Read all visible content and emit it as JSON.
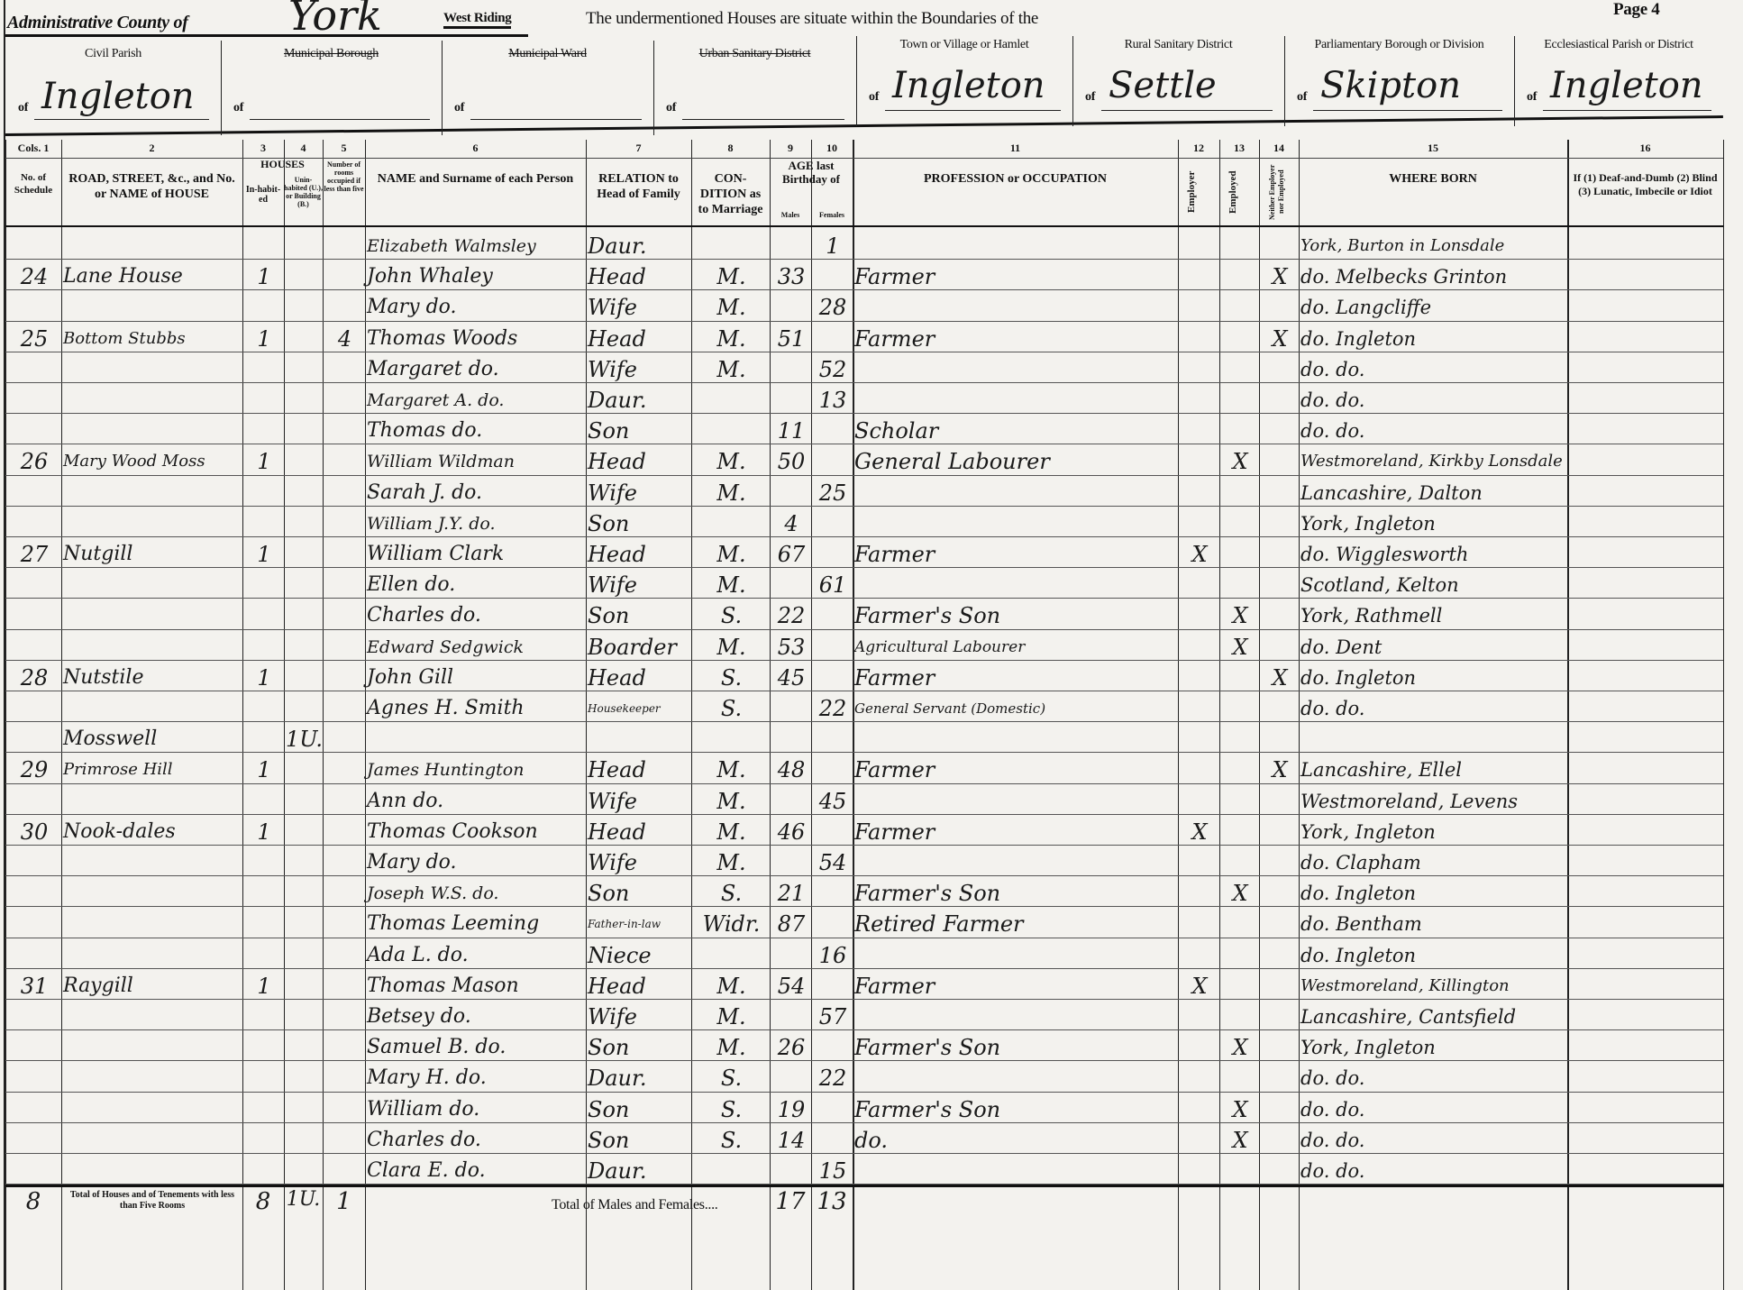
{
  "header": {
    "county_label": "Administrative County of",
    "county": "York",
    "riding": "West Riding",
    "intro": "The undermentioned Houses are situate within the Boundaries of the",
    "page": "Page 4",
    "areas": [
      {
        "label": "Civil Parish",
        "value": "Ingleton",
        "struck": false
      },
      {
        "label": "Municipal Borough",
        "value": "",
        "struck": true
      },
      {
        "label": "Municipal Ward",
        "value": "",
        "struck": true
      },
      {
        "label": "Urban Sanitary District",
        "value": "",
        "struck": true
      },
      {
        "label": "Town or Village or Hamlet",
        "value": "Ingleton",
        "struck": false
      },
      {
        "label": "Rural Sanitary District",
        "value": "Settle",
        "struck": false
      },
      {
        "label": "Parliamentary Borough or Division",
        "value": "Skipton",
        "struck": false
      },
      {
        "label": "Ecclesiastical Parish or District",
        "value": "Ingleton",
        "struck": false
      }
    ],
    "of": "of"
  },
  "columns": {
    "numbers": [
      "Cols. 1",
      "2",
      "3",
      "4",
      "5",
      "6",
      "7",
      "8",
      "9",
      "10",
      "11",
      "12",
      "13",
      "14",
      "15",
      "16"
    ],
    "c1": "No. of Schedule",
    "c2": "ROAD, STREET, &c., and No. or NAME of HOUSE",
    "houses": "HOUSES",
    "c3": "In-habit-ed",
    "c4": "Unin-habited (U.), or Building (B.)",
    "c5": "Number of rooms occupied if less than five",
    "c6": "NAME and Surname of each Person",
    "c7": "RELATION to Head of Family",
    "c8": "CON-DITION as to Marriage",
    "c9_10": "AGE last Birthday of",
    "males": "Males",
    "females": "Females",
    "c11": "PROFESSION or OCCUPATION",
    "c12": "Employer",
    "c13": "Employed",
    "c14": "Neither Employer nor Employed",
    "c15": "WHERE BORN",
    "c16": "If (1) Deaf-and-Dumb (2) Blind (3) Lunatic, Imbecile or Idiot"
  },
  "rows": [
    [
      "",
      "",
      "",
      "",
      "",
      "Elizabeth Walmsley",
      "Daur.",
      "",
      "",
      "1",
      "",
      "",
      "",
      "",
      "York, Burton in Lonsdale"
    ],
    [
      "24",
      "Lane House",
      "1",
      "",
      "",
      "John Whaley",
      "Head",
      "M.",
      "33",
      "",
      "Farmer",
      "",
      "",
      "X",
      "do. Melbecks Grinton"
    ],
    [
      "",
      "",
      "",
      "",
      "",
      "Mary do.",
      "Wife",
      "M.",
      "",
      "28",
      "",
      "",
      "",
      "",
      "do. Langcliffe"
    ],
    [
      "25",
      "Bottom Stubbs",
      "1",
      "",
      "4",
      "Thomas Woods",
      "Head",
      "M.",
      "51",
      "",
      "Farmer",
      "",
      "",
      "X",
      "do. Ingleton"
    ],
    [
      "",
      "",
      "",
      "",
      "",
      "Margaret do.",
      "Wife",
      "M.",
      "",
      "52",
      "",
      "",
      "",
      "",
      "do. do."
    ],
    [
      "",
      "",
      "",
      "",
      "",
      "Margaret A. do.",
      "Daur.",
      "",
      "",
      "13",
      "",
      "",
      "",
      "",
      "do. do."
    ],
    [
      "",
      "",
      "",
      "",
      "",
      "Thomas do.",
      "Son",
      "",
      "11",
      "",
      "Scholar",
      "",
      "",
      "",
      "do. do."
    ],
    [
      "26",
      "Mary Wood Moss",
      "1",
      "",
      "",
      "William Wildman",
      "Head",
      "M.",
      "50",
      "",
      "General Labourer",
      "",
      "X",
      "",
      "Westmoreland, Kirkby Lonsdale"
    ],
    [
      "",
      "",
      "",
      "",
      "",
      "Sarah J. do.",
      "Wife",
      "M.",
      "",
      "25",
      "",
      "",
      "",
      "",
      "Lancashire, Dalton"
    ],
    [
      "",
      "",
      "",
      "",
      "",
      "William J.Y. do.",
      "Son",
      "",
      "4",
      "",
      "",
      "",
      "",
      "",
      "York, Ingleton"
    ],
    [
      "27",
      "Nutgill",
      "1",
      "",
      "",
      "William Clark",
      "Head",
      "M.",
      "67",
      "",
      "Farmer",
      "X",
      "",
      "",
      "do. Wigglesworth"
    ],
    [
      "",
      "",
      "",
      "",
      "",
      "Ellen do.",
      "Wife",
      "M.",
      "",
      "61",
      "",
      "",
      "",
      "",
      "Scotland, Kelton"
    ],
    [
      "",
      "",
      "",
      "",
      "",
      "Charles do.",
      "Son",
      "S.",
      "22",
      "",
      "Farmer's Son",
      "",
      "X",
      "",
      "York, Rathmell"
    ],
    [
      "",
      "",
      "",
      "",
      "",
      "Edward Sedgwick",
      "Boarder",
      "M.",
      "53",
      "",
      "Agricultural Labourer",
      "",
      "X",
      "",
      "do. Dent"
    ],
    [
      "28",
      "Nutstile",
      "1",
      "",
      "",
      "John Gill",
      "Head",
      "S.",
      "45",
      "",
      "Farmer",
      "",
      "",
      "X",
      "do. Ingleton"
    ],
    [
      "",
      "",
      "",
      "",
      "",
      "Agnes H. Smith",
      "Housekeeper",
      "S.",
      "",
      "22",
      "General Servant (Domestic)",
      "",
      "",
      "",
      "do. do."
    ],
    [
      "",
      "Mosswell",
      "",
      "1U.",
      "",
      "",
      "",
      "",
      "",
      "",
      "",
      "",
      "",
      "",
      ""
    ],
    [
      "29",
      "Primrose Hill",
      "1",
      "",
      "",
      "James Huntington",
      "Head",
      "M.",
      "48",
      "",
      "Farmer",
      "",
      "",
      "X",
      "Lancashire, Ellel"
    ],
    [
      "",
      "",
      "",
      "",
      "",
      "Ann do.",
      "Wife",
      "M.",
      "",
      "45",
      "",
      "",
      "",
      "",
      "Westmoreland, Levens"
    ],
    [
      "30",
      "Nook-dales",
      "1",
      "",
      "",
      "Thomas Cookson",
      "Head",
      "M.",
      "46",
      "",
      "Farmer",
      "X",
      "",
      "",
      "York, Ingleton"
    ],
    [
      "",
      "",
      "",
      "",
      "",
      "Mary do.",
      "Wife",
      "M.",
      "",
      "54",
      "",
      "",
      "",
      "",
      "do. Clapham"
    ],
    [
      "",
      "",
      "",
      "",
      "",
      "Joseph W.S. do.",
      "Son",
      "S.",
      "21",
      "",
      "Farmer's Son",
      "",
      "X",
      "",
      "do. Ingleton"
    ],
    [
      "",
      "",
      "",
      "",
      "",
      "Thomas Leeming",
      "Father-in-law",
      "Widr.",
      "87",
      "",
      "Retired Farmer",
      "",
      "",
      "",
      "do. Bentham"
    ],
    [
      "",
      "",
      "",
      "",
      "",
      "Ada L. do.",
      "Niece",
      "",
      "",
      "16",
      "",
      "",
      "",
      "",
      "do. Ingleton"
    ],
    [
      "31",
      "Raygill",
      "1",
      "",
      "",
      "Thomas Mason",
      "Head",
      "M.",
      "54",
      "",
      "Farmer",
      "X",
      "",
      "",
      "Westmoreland, Killington"
    ],
    [
      "",
      "",
      "",
      "",
      "",
      "Betsey do.",
      "Wife",
      "M.",
      "",
      "57",
      "",
      "",
      "",
      "",
      "Lancashire, Cantsfield"
    ],
    [
      "",
      "",
      "",
      "",
      "",
      "Samuel B. do.",
      "Son",
      "M.",
      "26",
      "",
      "Farmer's Son",
      "",
      "X",
      "",
      "York, Ingleton"
    ],
    [
      "",
      "",
      "",
      "",
      "",
      "Mary H. do.",
      "Daur.",
      "S.",
      "",
      "22",
      "",
      "",
      "",
      "",
      "do. do."
    ],
    [
      "",
      "",
      "",
      "",
      "",
      "William do.",
      "Son",
      "S.",
      "19",
      "",
      "Farmer's Son",
      "",
      "X",
      "",
      "do. do."
    ],
    [
      "",
      "",
      "",
      "",
      "",
      "Charles do.",
      "Son",
      "S.",
      "14",
      "",
      "do.",
      "",
      "X",
      "",
      "do. do."
    ],
    [
      "",
      "",
      "",
      "",
      "",
      "Clara E. do.",
      "Daur.",
      "",
      "",
      "15",
      "",
      "",
      "",
      "",
      "do. do."
    ]
  ],
  "totals": {
    "schedules": "8",
    "houses_label": "Total of Houses and of Tenements with less than Five Rooms",
    "inhabited": "8",
    "uninhabited": "1U.",
    "rooms": "1",
    "persons_label": "Total of Males and Females....",
    "males": "17",
    "females": "13"
  }
}
